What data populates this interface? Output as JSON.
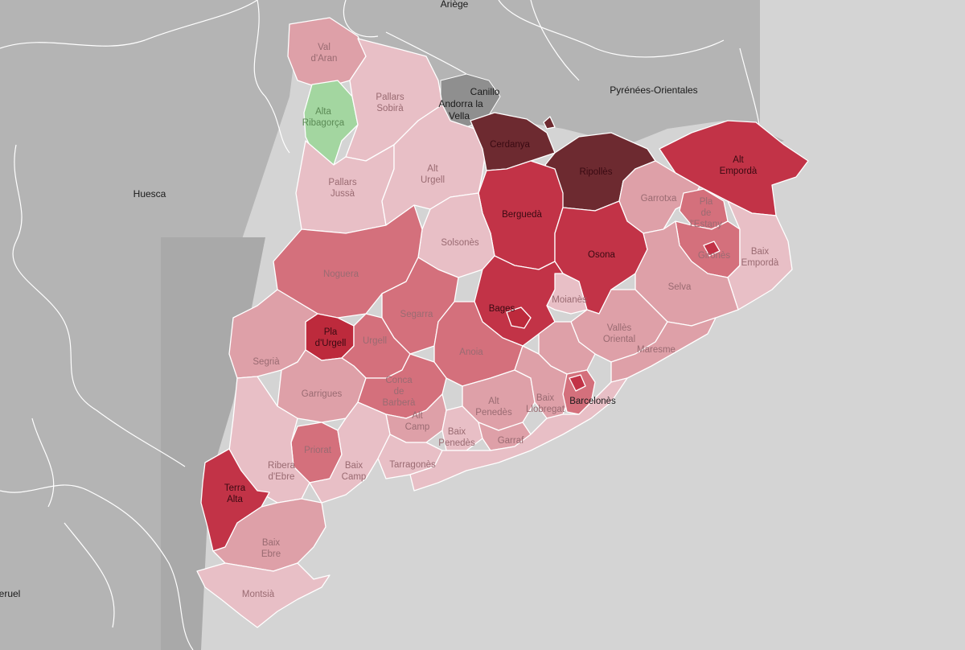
{
  "map": {
    "colors": {
      "sea": "#d4d4d4",
      "land_outside": "#b4b4b4",
      "land_outside_dark": "#a6a6a6",
      "andorra": "#8e8e8e",
      "scale": [
        "#e8bfc6",
        "#dea0a8",
        "#d4707c",
        "#c23347",
        "#bd2a3c",
        "#6d2a30"
      ],
      "green": "#a3d6a0"
    },
    "external_labels": [
      {
        "id": "ariege",
        "text": "Ariège"
      },
      {
        "id": "huesca",
        "text": "Huesca"
      },
      {
        "id": "canillo",
        "text": "Canillo"
      },
      {
        "id": "andorra1",
        "text": "Andorra la"
      },
      {
        "id": "andorra2",
        "text": "Vella"
      },
      {
        "id": "pyrenees",
        "text": "Pyrénées-Orientales"
      },
      {
        "id": "teruel",
        "text": "eruel"
      }
    ],
    "comarques": [
      {
        "id": "val-daran",
        "lines": [
          "Val",
          "d'Aran"
        ],
        "level": 1
      },
      {
        "id": "alta-ribagorca",
        "lines": [
          "Alta",
          "Ribagorça"
        ],
        "level": "green"
      },
      {
        "id": "pallars-sobira",
        "lines": [
          "Pallars",
          "Sobirà"
        ],
        "level": 0
      },
      {
        "id": "pallars-jussa",
        "lines": [
          "Pallars",
          "Jussà"
        ],
        "level": 0
      },
      {
        "id": "alt-urgell",
        "lines": [
          "Alt",
          "Urgell"
        ],
        "level": 0
      },
      {
        "id": "cerdanya",
        "lines": [
          "Cerdanya"
        ],
        "level": 5
      },
      {
        "id": "ripolles",
        "lines": [
          "Ripollès"
        ],
        "level": 5
      },
      {
        "id": "alt-emporda",
        "lines": [
          "Alt",
          "Empordà"
        ],
        "level": 3
      },
      {
        "id": "garrotxa",
        "lines": [
          "Garrotxa"
        ],
        "level": 1
      },
      {
        "id": "pla-de-lestany",
        "lines": [
          "Pla",
          "de",
          "l'Estany"
        ],
        "level": 2
      },
      {
        "id": "girones",
        "lines": [
          "Gironès"
        ],
        "level": 2
      },
      {
        "id": "baix-emporda",
        "lines": [
          "Baix",
          "Empordà"
        ],
        "level": 0
      },
      {
        "id": "bergueda",
        "lines": [
          "Berguedà"
        ],
        "level": 3
      },
      {
        "id": "solsones",
        "lines": [
          "Solsonès"
        ],
        "level": 0
      },
      {
        "id": "osona",
        "lines": [
          "Osona"
        ],
        "level": 3
      },
      {
        "id": "selva",
        "lines": [
          "Selva"
        ],
        "level": 1
      },
      {
        "id": "noguera",
        "lines": [
          "Noguera"
        ],
        "level": 2
      },
      {
        "id": "bages",
        "lines": [
          "Bages"
        ],
        "level": 3
      },
      {
        "id": "moianes",
        "lines": [
          "Moianès"
        ],
        "level": 0
      },
      {
        "id": "segarra",
        "lines": [
          "Segarra"
        ],
        "level": 2
      },
      {
        "id": "pla-durgell",
        "lines": [
          "Pla",
          "d'Urgell"
        ],
        "level": 4
      },
      {
        "id": "urgell",
        "lines": [
          "Urgell"
        ],
        "level": 2
      },
      {
        "id": "segria",
        "lines": [
          "Segrià"
        ],
        "level": 1
      },
      {
        "id": "anoia",
        "lines": [
          "Anoia"
        ],
        "level": 2
      },
      {
        "id": "valles-oriental",
        "lines": [
          "Vallès",
          "Oriental"
        ],
        "level": 1
      },
      {
        "id": "maresme",
        "lines": [
          "Maresme"
        ],
        "level": 1
      },
      {
        "id": "garrigues",
        "lines": [
          "Garrigues"
        ],
        "level": 1
      },
      {
        "id": "conca-de-barbera",
        "lines": [
          "Conca",
          "de",
          "Barberà"
        ],
        "level": 2
      },
      {
        "id": "alt-penedes",
        "lines": [
          "Alt",
          "Penedès"
        ],
        "level": 1
      },
      {
        "id": "baix-llobregat",
        "lines": [
          "Baix",
          "Llobregat"
        ],
        "level": 1
      },
      {
        "id": "barcelones",
        "lines": [
          "Barcelonès"
        ],
        "level": 3
      },
      {
        "id": "alt-camp",
        "lines": [
          "Alt",
          "Camp"
        ],
        "level": 1
      },
      {
        "id": "baix-penedes",
        "lines": [
          "Baix",
          "Penedès"
        ],
        "level": 0
      },
      {
        "id": "garraf",
        "lines": [
          "Garraf"
        ],
        "level": 1
      },
      {
        "id": "priorat",
        "lines": [
          "Priorat"
        ],
        "level": 2
      },
      {
        "id": "ribera-debre",
        "lines": [
          "Ribera",
          "d'Ebre"
        ],
        "level": 0
      },
      {
        "id": "baix-camp",
        "lines": [
          "Baix",
          "Camp"
        ],
        "level": 0
      },
      {
        "id": "tarragones",
        "lines": [
          "Tarragonès"
        ],
        "level": 0
      },
      {
        "id": "terra-alta",
        "lines": [
          "Terra",
          "Alta"
        ],
        "level": 3
      },
      {
        "id": "baix-ebre",
        "lines": [
          "Baix",
          "Ebre"
        ],
        "level": 1
      },
      {
        "id": "montsia",
        "lines": [
          "Montsià"
        ],
        "level": 0
      }
    ]
  }
}
